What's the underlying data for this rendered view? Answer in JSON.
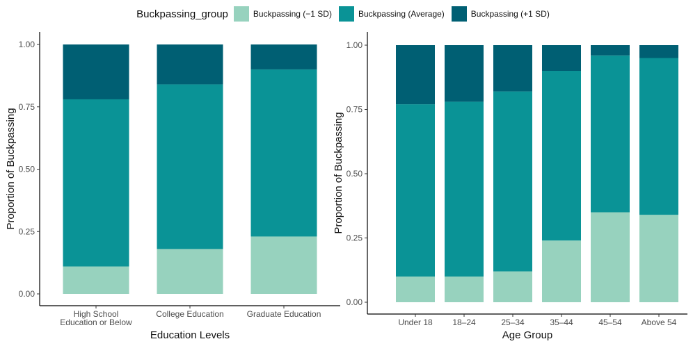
{
  "legend": {
    "title": "Buckpassing_group",
    "items": [
      {
        "label": "Buckpassing (−1 SD)",
        "color": "#97d2be"
      },
      {
        "label": "Buckpassing (Average)",
        "color": "#0a9396"
      },
      {
        "label": "Buckpassing (+1 SD)",
        "color": "#005f73"
      }
    ]
  },
  "chart_data": [
    {
      "type": "bar",
      "stacked": true,
      "xlabel": "Education Levels",
      "ylabel": "Proportion of Buckpassing",
      "ylim": [
        0,
        1
      ],
      "yticks": [
        "0.00",
        "0.25",
        "0.50",
        "0.75",
        "1.00"
      ],
      "categories": [
        [
          "High School",
          "Education or Below"
        ],
        [
          "College Education"
        ],
        [
          "Graduate Education"
        ]
      ],
      "series": [
        {
          "name": "Buckpassing (−1 SD)",
          "values": [
            0.11,
            0.18,
            0.23
          ]
        },
        {
          "name": "Buckpassing (Average)",
          "values": [
            0.67,
            0.66,
            0.67
          ]
        },
        {
          "name": "Buckpassing (+1 SD)",
          "values": [
            0.22,
            0.16,
            0.1
          ]
        }
      ]
    },
    {
      "type": "bar",
      "stacked": true,
      "xlabel": "Age Group",
      "ylabel": "Proportion of Buckpassing",
      "ylim": [
        0,
        1
      ],
      "yticks": [
        "0.00",
        "0.25",
        "0.50",
        "0.75",
        "1.00"
      ],
      "categories": [
        [
          "Under 18"
        ],
        [
          "18–24"
        ],
        [
          "25–34"
        ],
        [
          "35–44"
        ],
        [
          "45–54"
        ],
        [
          "Above 54"
        ]
      ],
      "series": [
        {
          "name": "Buckpassing (−1 SD)",
          "values": [
            0.1,
            0.1,
            0.12,
            0.24,
            0.35,
            0.34
          ]
        },
        {
          "name": "Buckpassing (Average)",
          "values": [
            0.67,
            0.68,
            0.7,
            0.66,
            0.61,
            0.61
          ]
        },
        {
          "name": "Buckpassing (+1 SD)",
          "values": [
            0.23,
            0.22,
            0.18,
            0.1,
            0.04,
            0.05
          ]
        }
      ]
    }
  ]
}
